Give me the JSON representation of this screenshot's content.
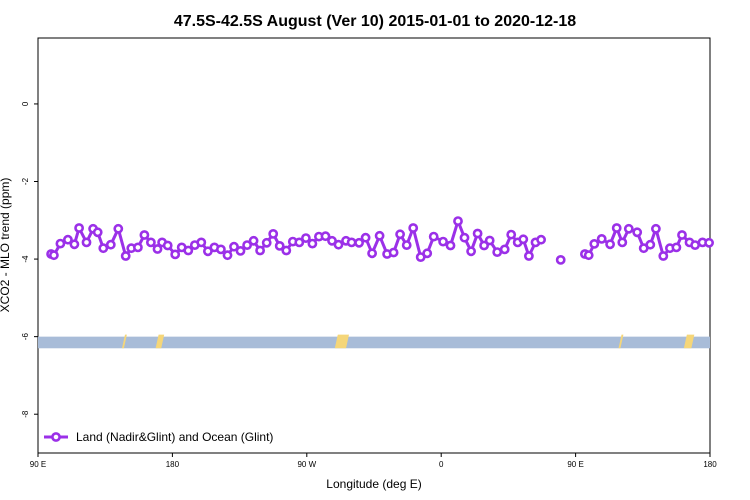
{
  "chart_data": {
    "type": "line",
    "title": "47.5S-42.5S August (Ver 10)   2015-01-01 to 2020-12-18",
    "xlabel": "Longitude (deg E)",
    "ylabel": "XCO2 - MLO trend (ppm)",
    "xlim": [
      90,
      450
    ],
    "ylim": [
      -9.0,
      1.7
    ],
    "x_ticks": [
      {
        "value": 90,
        "label": "90 E"
      },
      {
        "value": 162,
        "label": "180"
      },
      {
        "value": 234,
        "label": "90 W"
      },
      {
        "value": 306,
        "label": "0"
      },
      {
        "value": 378,
        "label": "90 E"
      },
      {
        "value": 450,
        "label": "180"
      }
    ],
    "y_ticks": [
      {
        "value": 0,
        "label": "0"
      },
      {
        "value": -2,
        "label": "-2"
      },
      {
        "value": -4,
        "label": "-4"
      },
      {
        "value": -6,
        "label": "-6"
      },
      {
        "value": -8,
        "label": "-8"
      }
    ],
    "grid": false,
    "legend_position": "bottom-left",
    "series": [
      {
        "name": "Land (Nadir&Glint) and Ocean (Glint)",
        "color": "#9b30e8",
        "x": [
          97,
          98.5,
          102,
          106,
          109.5,
          112,
          116,
          119.5,
          122,
          125,
          129,
          133,
          137,
          140,
          143.5,
          147,
          150.5,
          154,
          156.5,
          159.5,
          163.5,
          167,
          170.5,
          174,
          177.5,
          181,
          184.5,
          188,
          191.5,
          195,
          198.5,
          202,
          205.5,
          209,
          212.5,
          216,
          219.5,
          223,
          226.5,
          230,
          233.5,
          237,
          240.5,
          244,
          247.5,
          251,
          255,
          258,
          262,
          265.5,
          269,
          273,
          277,
          280.5,
          284,
          287.5,
          291,
          295,
          298.5,
          302,
          307,
          311,
          315,
          318.5,
          322,
          325.5,
          329,
          332,
          336,
          340,
          343.5,
          347,
          350,
          353,
          356.5,
          359.5
        ],
        "y": [
          -3.87,
          -3.9,
          -3.6,
          -3.5,
          -3.62,
          -3.2,
          -3.57,
          -3.22,
          -3.31,
          -3.72,
          -3.63,
          -3.22,
          -3.92,
          -3.72,
          -3.7,
          -3.38,
          -3.57,
          -3.74,
          -3.57,
          -3.65,
          -3.88,
          -3.7,
          -3.78,
          -3.64,
          -3.57,
          -3.8,
          -3.7,
          -3.75,
          -3.9,
          -3.68,
          -3.79,
          -3.64,
          -3.53,
          -3.78,
          -3.58,
          -3.35,
          -3.66,
          -3.78,
          -3.55,
          -3.57,
          -3.46,
          -3.6,
          -3.42,
          -3.41,
          -3.53,
          -3.63,
          -3.53,
          -3.57,
          -3.58,
          -3.45,
          -3.85,
          -3.4,
          -3.87,
          -3.83,
          -3.36,
          -3.64,
          -3.2,
          -3.95,
          -3.85,
          -3.42,
          -3.55,
          -3.65,
          -3.02,
          -3.45,
          -3.8,
          -3.34,
          -3.65,
          -3.52,
          -3.82,
          -3.75,
          -3.37,
          -3.57,
          -3.49,
          -3.92,
          -3.57,
          -3.5
        ]
      },
      {
        "name": "",
        "color": "#9b30e8",
        "x": [
          370
        ],
        "y": [
          -4.02
        ]
      },
      {
        "name": "",
        "color": "#9b30e8",
        "x": [
          383,
          385,
          388,
          392,
          396.5,
          400,
          403,
          406.5,
          411,
          414.5,
          418,
          421,
          425,
          428.5,
          432,
          435,
          439,
          442,
          446,
          449.5
        ],
        "y": [
          -3.87,
          -3.9,
          -3.61,
          -3.48,
          -3.62,
          -3.2,
          -3.57,
          -3.22,
          -3.31,
          -3.72,
          -3.63,
          -3.22,
          -3.92,
          -3.72,
          -3.7,
          -3.38,
          -3.57,
          -3.64,
          -3.57,
          -3.58
        ]
      }
    ],
    "land_strip": {
      "y_top": -6.0,
      "y_bottom": -6.3,
      "ocean_color": "#a8bcd8",
      "land_color": "#f5d679",
      "land_marks": [
        {
          "x0": 135,
          "x1": 136
        },
        {
          "x0": 153,
          "x1": 156
        },
        {
          "x0": 249,
          "x1": 255
        },
        {
          "x0": 401,
          "x1": 402
        },
        {
          "x0": 436,
          "x1": 440
        }
      ]
    }
  }
}
